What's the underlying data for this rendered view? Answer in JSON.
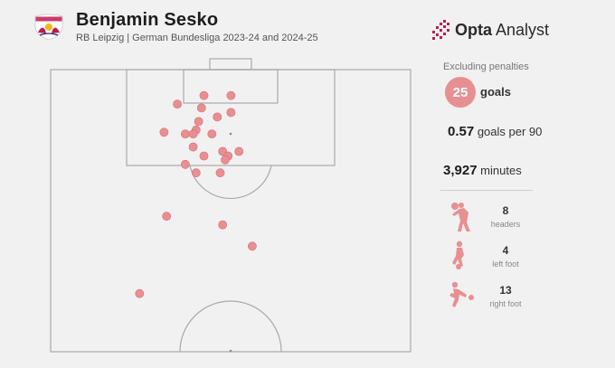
{
  "header": {
    "player": "Benjamin Sesko",
    "subtitle": "RB Leipzig | German Bundesliga 2023-24 and 2024-25"
  },
  "brand": {
    "name_bold": "Opta",
    "name_regular": " Analyst"
  },
  "stats": {
    "caption": "Excluding penalties",
    "goals": "25",
    "goals_label": "goals",
    "per90": "0.57",
    "per90_label": "goals per 90",
    "minutes": "3,927",
    "minutes_label": "minutes"
  },
  "body_parts": [
    {
      "count": "8",
      "label": "headers",
      "icon": "header-icon"
    },
    {
      "count": "4",
      "label": "left foot",
      "icon": "left-foot-icon"
    },
    {
      "count": "13",
      "label": "right foot",
      "icon": "right-foot-icon"
    }
  ],
  "colors": {
    "shot": "#e88f91",
    "shot_stroke": "#d86f72",
    "accent": "#c01a52",
    "pitch_line": "#a9a9a9"
  },
  "chart_data": {
    "type": "scatter",
    "title": "Benjamin Sesko",
    "xlabel": "",
    "ylabel": "",
    "xlim": [
      0,
      100
    ],
    "ylim": [
      0,
      50
    ],
    "points": [
      {
        "x": 42.6,
        "y": 4.6
      },
      {
        "x": 50.1,
        "y": 4.6
      },
      {
        "x": 41.9,
        "y": 6.8
      },
      {
        "x": 35.2,
        "y": 6.1
      },
      {
        "x": 50.1,
        "y": 7.6
      },
      {
        "x": 46.3,
        "y": 8.4
      },
      {
        "x": 41.1,
        "y": 9.2
      },
      {
        "x": 40.4,
        "y": 10.7
      },
      {
        "x": 37.4,
        "y": 11.4
      },
      {
        "x": 39.6,
        "y": 11.4
      },
      {
        "x": 44.8,
        "y": 11.4
      },
      {
        "x": 31.5,
        "y": 11.1
      },
      {
        "x": 39.6,
        "y": 13.7
      },
      {
        "x": 47.8,
        "y": 14.5
      },
      {
        "x": 52.3,
        "y": 14.5
      },
      {
        "x": 42.6,
        "y": 15.3
      },
      {
        "x": 49.3,
        "y": 15.3
      },
      {
        "x": 48.5,
        "y": 16.0
      },
      {
        "x": 37.4,
        "y": 16.8
      },
      {
        "x": 40.4,
        "y": 18.3
      },
      {
        "x": 47.1,
        "y": 18.3
      },
      {
        "x": 32.2,
        "y": 26.0
      },
      {
        "x": 47.8,
        "y": 27.5
      },
      {
        "x": 56.0,
        "y": 31.3
      },
      {
        "x": 24.7,
        "y": 39.7
      }
    ]
  }
}
